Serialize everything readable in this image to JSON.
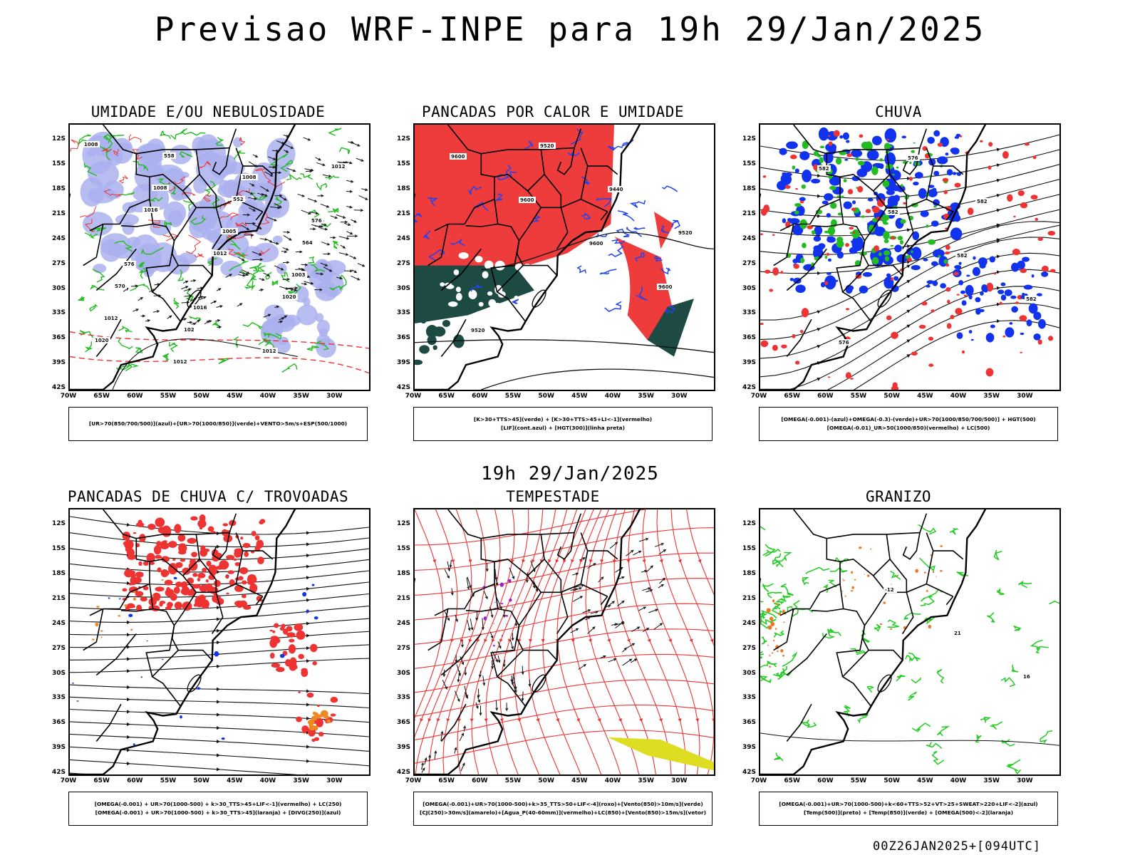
{
  "header": {
    "title": "Previsao WRF-INPE  para 19h 29/Jan/2025"
  },
  "middle": {
    "title": "19h 29/Jan/2025"
  },
  "footer": {
    "run": "00Z26JAN2025+[094UTC]"
  },
  "axes": {
    "lat_labels": [
      "12S",
      "15S",
      "18S",
      "21S",
      "24S",
      "27S",
      "30S",
      "33S",
      "36S",
      "39S",
      "42S"
    ],
    "lon_labels": [
      "70W",
      "65W",
      "60W",
      "55W",
      "50W",
      "45W",
      "40W",
      "35W",
      "30W"
    ]
  },
  "panels": [
    {
      "title": "UMIDADE E/OU NEBULOSIDADE",
      "legend": [
        "[UR>70(850/700/500)](azul)+[UR>70(1000/850)](verde)+VENTO>5m/s+ESP(500/1000)"
      ],
      "contour_labels": [
        "1008",
        "1008",
        "1005",
        "1003",
        "1012",
        "1012",
        "1008",
        "576",
        "576",
        "1016",
        "1012",
        "1012",
        "1016",
        "1012",
        "1020",
        "1020",
        "558",
        "552",
        "564",
        "570",
        "102"
      ],
      "colors": {
        "fill": "#aab0ee",
        "green": "#22bb22",
        "red": "#ee3333",
        "line": "#111111"
      }
    },
    {
      "title": "PANCADAS POR CALOR E UMIDADE",
      "legend": [
        "[K>30+TTS>45](verde) + [K>30+TTS>45+LI<-1](vermelho)",
        "[LIF](cont.azul) + [HGT(300)](linha preta)"
      ],
      "contour_labels": [
        "9600",
        "9600",
        "9600",
        "9600",
        "9520",
        "9520",
        "9440",
        "9520"
      ],
      "colors": {
        "fill": "#ee3b3b",
        "dark": "#1e4a44",
        "blue": "#2244ee",
        "line": "#111111"
      }
    },
    {
      "title": "CHUVA",
      "legend": [
        "[OMEGA(-0.001)-(azul)+OMEGA(-0.3)-(verde)+UR>70(1000/850/700/500)] + HGT(500)",
        "[OMEGA(-0.01)_UR>50(1000/850)(vermelho) + LC(500)"
      ],
      "contour_labels": [
        "582",
        "582",
        "582",
        "582",
        "576",
        "576",
        "582"
      ],
      "colors": {
        "red": "#ee3333",
        "blue": "#1133ee",
        "green": "#22bb22",
        "line": "#111111"
      }
    },
    {
      "title": "PANCADAS DE CHUVA C/ TROVOADAS",
      "legend": [
        "[OMEGA(-0.001) + UR>70(1000-500) + k>30_TTS>45+LIF<-1](vermelho) + LC(250)",
        "[OMEGA(-0.001) + UR>70(1000-500) + k>30_TTS>45](laranja) + [DIVG(250)](azul)"
      ],
      "contour_labels": [],
      "colors": {
        "red": "#ee3333",
        "blue": "#1133ee",
        "orange": "#ee8822",
        "line": "#111111"
      }
    },
    {
      "title": "TEMPESTADE",
      "legend": [
        "[OMEGA(-0.001)+UR>70(1000-500)+k>35_TTS>50+LIF<-4](roxo)+[Vento(850)>10m/s](verde)",
        "[CJ(250)>30m/s](amarelo)+[Agua_P(40-60mm)](vermelho)+LC(850)+[Vento(850)>15m/s](vetor)"
      ],
      "contour_labels": [],
      "colors": {
        "red": "#ee3333",
        "purple": "#9922cc",
        "yellow": "#dddd22",
        "line": "#111111"
      }
    },
    {
      "title": "GRANIZO",
      "legend": [
        "[OMEGA(-0.001)+UR>70(1000-500)+k<60+TTS>52+VT>25+SWEAT>220+LIF<-2](azul)",
        "[Temp(500)](preto) + [Temp(850)](verde) + [OMEGA(500)<-2](laranja)"
      ],
      "contour_labels": [
        "-12",
        "21",
        "16"
      ],
      "colors": {
        "green": "#22cc22",
        "orange": "#ee7722",
        "line": "#111111"
      }
    }
  ]
}
